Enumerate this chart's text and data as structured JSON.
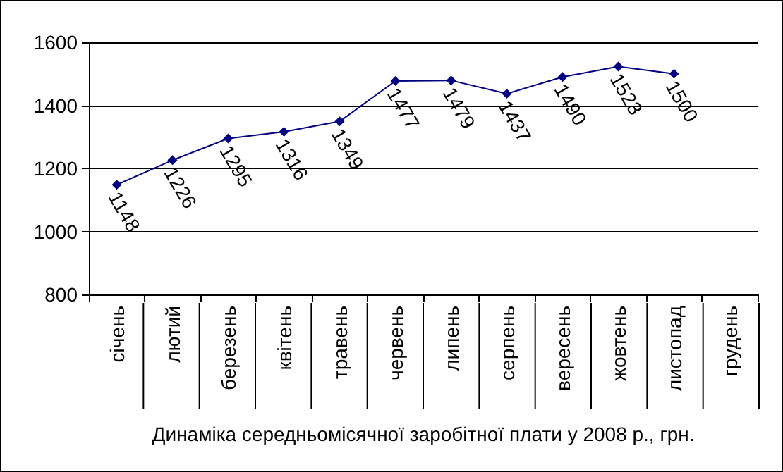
{
  "chart_data": {
    "type": "line",
    "xlabel": "Динаміка середньомісячної заробітної плати у 2008 р., грн.",
    "categories": [
      "січень",
      "лютий",
      "березень",
      "квітень",
      "травень",
      "червень",
      "липень",
      "серпень",
      "вересень",
      "жовтень",
      "листопад",
      "грудень"
    ],
    "series": [
      {
        "color": "#000080",
        "values": [
          1148,
          1226,
          1295,
          1316,
          1349,
          1477,
          1479,
          1437,
          1490,
          1523,
          1500,
          null
        ]
      }
    ],
    "ylim": [
      800,
      1600
    ],
    "yticks": [
      800,
      1000,
      1200,
      1400,
      1600
    ],
    "grid": "y",
    "marker": "diamond",
    "line_style": "solid",
    "data_labels": true
  }
}
